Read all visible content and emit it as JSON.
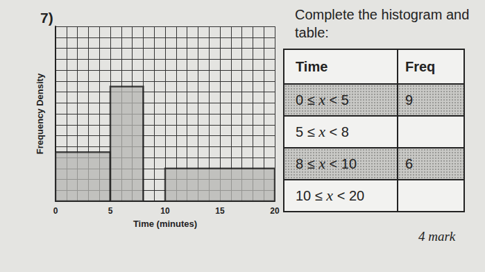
{
  "title": "7)",
  "instruction": "Complete the histogram and table:",
  "marks": "4 mark",
  "chart_data": {
    "type": "histogram",
    "bins": [
      0,
      5,
      8,
      10,
      20
    ],
    "values": [
      1.8,
      4.2,
      null,
      1.2
    ],
    "xlabel": "Time (minutes)",
    "ylabel": "Frequency Density",
    "xlim": [
      0,
      20
    ],
    "xticks": [
      0,
      5,
      10,
      15,
      20
    ],
    "ylim": [
      0,
      6.4
    ],
    "yticks": [
      0,
      0.4,
      0.8,
      1.2,
      1.6,
      2,
      2.4,
      2.8,
      3.2,
      3.6,
      4,
      4.4,
      4.8,
      5.2,
      5.6,
      6,
      6.4
    ],
    "tick_labels": "x",
    "grid": true,
    "color": "#b5b5b2"
  },
  "table": {
    "header": [
      "Time",
      "Freq"
    ],
    "rows": [
      [
        "0 ≤ x < 5",
        9
      ],
      [
        "5 ≤ x < 8",
        null
      ],
      [
        "8 ≤ x < 10",
        6
      ],
      [
        "10 ≤ x < 20",
        null
      ]
    ]
  }
}
